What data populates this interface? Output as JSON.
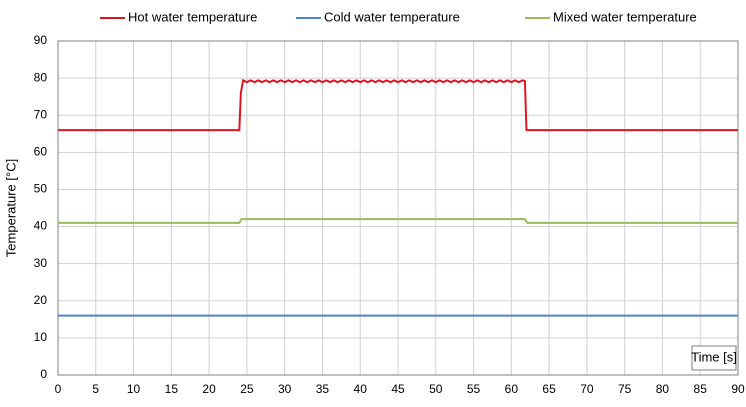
{
  "chart_data": {
    "type": "line",
    "xlabel": "Time [s]",
    "ylabel": "Temperature [°C]",
    "xlim": [
      0,
      90
    ],
    "xticks": [
      0,
      5,
      10,
      15,
      20,
      25,
      30,
      35,
      40,
      45,
      50,
      55,
      60,
      65,
      70,
      75,
      80,
      85,
      90
    ],
    "ylim": [
      0,
      90
    ],
    "yticks": [
      0,
      10,
      20,
      30,
      40,
      50,
      60,
      70,
      80,
      90
    ],
    "grid": true,
    "legend": "top",
    "series": [
      {
        "name": "Hot water temperature",
        "color": "#e0141e",
        "x": [
          0,
          24,
          24.2,
          24.5,
          25,
          25.5,
          26,
          26.5,
          27,
          27.5,
          28,
          28.5,
          29,
          29.5,
          30,
          30.5,
          31,
          31.5,
          32,
          32.5,
          33,
          33.5,
          34,
          34.5,
          35,
          35.5,
          36,
          36.5,
          37,
          37.5,
          38,
          38.5,
          39,
          39.5,
          40,
          40.5,
          41,
          41.5,
          42,
          42.5,
          43,
          43.5,
          44,
          44.5,
          45,
          45.5,
          46,
          46.5,
          47,
          47.5,
          48,
          48.5,
          49,
          49.5,
          50,
          50.5,
          51,
          51.5,
          52,
          52.5,
          53,
          53.5,
          54,
          54.5,
          55,
          55.5,
          56,
          56.5,
          57,
          57.5,
          58,
          58.5,
          59,
          59.5,
          60,
          60.5,
          61,
          61.5,
          61.8,
          62,
          90
        ],
        "values": [
          66,
          66,
          76,
          79.4,
          78.9,
          79.4,
          78.9,
          79.4,
          78.9,
          79.4,
          78.9,
          79.4,
          78.9,
          79.4,
          78.9,
          79.4,
          78.9,
          79.4,
          78.9,
          79.4,
          78.9,
          79.4,
          78.9,
          79.4,
          78.9,
          79.4,
          78.9,
          79.4,
          78.9,
          79.4,
          78.9,
          79.4,
          78.9,
          79.4,
          78.9,
          79.4,
          78.9,
          79.4,
          78.9,
          79.4,
          78.9,
          79.4,
          78.9,
          79.4,
          78.9,
          79.4,
          78.9,
          79.4,
          78.9,
          79.4,
          78.9,
          79.4,
          78.9,
          79.4,
          78.9,
          79.4,
          78.9,
          79.4,
          78.9,
          79.4,
          78.9,
          79.4,
          78.9,
          79.4,
          78.9,
          79.4,
          78.9,
          79.4,
          78.9,
          79.4,
          78.9,
          79.4,
          78.9,
          79.4,
          78.9,
          79.4,
          78.9,
          79.4,
          79.2,
          66,
          66
        ]
      },
      {
        "name": "Cold water temperature",
        "color": "#4f81d0",
        "x": [
          0,
          90
        ],
        "values": [
          16,
          16
        ]
      },
      {
        "name": "Mixed water temperature",
        "color": "#9bbb59",
        "x": [
          0,
          24,
          24.3,
          61.8,
          62.1,
          90
        ],
        "values": [
          41,
          41,
          42,
          42,
          41,
          41
        ]
      }
    ]
  }
}
